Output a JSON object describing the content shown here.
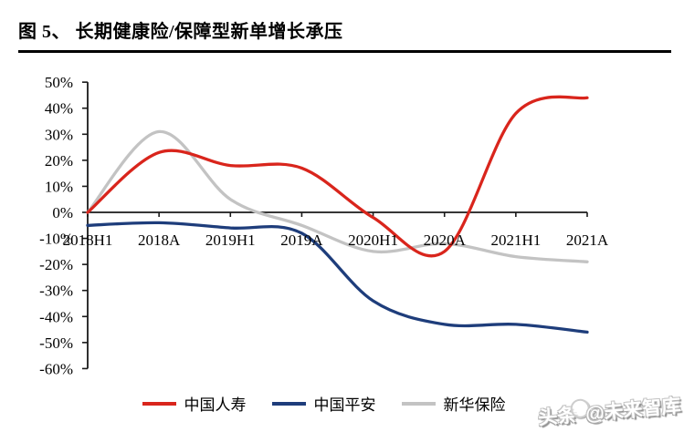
{
  "header": {
    "title": "图 5、 长期健康险/保障型新单增长承压"
  },
  "watermark": {
    "prefix": "头条",
    "handle": "@未来智库",
    "logo_icon": "toutiao-circle"
  },
  "chart_data": {
    "type": "line",
    "title": "图 5、 长期健康险/保障型新单增长承压",
    "categories": [
      "2018H1",
      "2018A",
      "2019H1",
      "2019A",
      "2020H1",
      "2020A",
      "2021H1",
      "2021A"
    ],
    "series": [
      {
        "name": "中国人寿",
        "color": "#d9251c",
        "values": [
          0,
          23,
          18,
          17,
          -2,
          -15,
          38,
          44
        ]
      },
      {
        "name": "中国平安",
        "color": "#1e3d7b",
        "values": [
          -5,
          -4,
          -6,
          -8,
          -34,
          -43,
          -43,
          -46
        ]
      },
      {
        "name": "新华保险",
        "color": "#c3c3c3",
        "values": [
          0,
          31,
          5,
          -5,
          -15,
          -12,
          -17,
          -19
        ]
      }
    ],
    "ylim": [
      -60,
      50
    ],
    "ytick_step": 10,
    "ytick_labels": [
      "50%",
      "40%",
      "30%",
      "20%",
      "10%",
      "0%",
      "-10%",
      "-20%",
      "-30%",
      "-40%",
      "-50%",
      "-60%"
    ],
    "unit": "percent",
    "grid": false,
    "legend_position": "bottom",
    "smooth": true
  }
}
